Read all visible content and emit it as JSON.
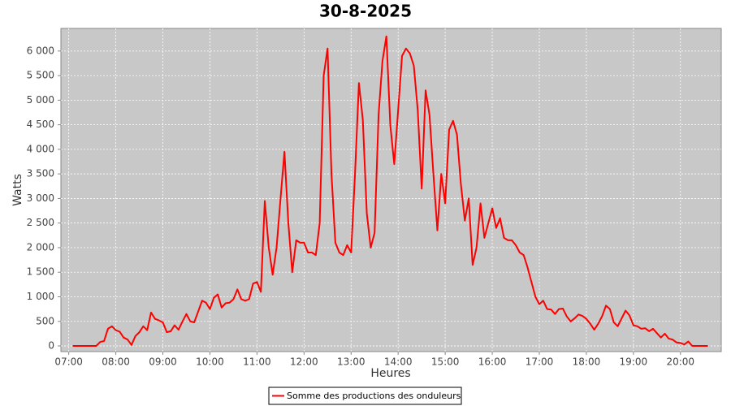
{
  "chart_data": {
    "type": "line",
    "title": "30-8-2025",
    "x_label": "Heures",
    "y_label": "Watts",
    "x": [
      "07:05",
      "07:10",
      "07:15",
      "07:20",
      "07:25",
      "07:30",
      "07:35",
      "07:40",
      "07:45",
      "07:50",
      "07:55",
      "08:00",
      "08:05",
      "08:10",
      "08:15",
      "08:20",
      "08:25",
      "08:30",
      "08:35",
      "08:40",
      "08:45",
      "08:50",
      "08:55",
      "09:00",
      "09:05",
      "09:10",
      "09:15",
      "09:20",
      "09:25",
      "09:30",
      "09:35",
      "09:40",
      "09:45",
      "09:50",
      "09:55",
      "10:00",
      "10:05",
      "10:10",
      "10:15",
      "10:20",
      "10:25",
      "10:30",
      "10:35",
      "10:40",
      "10:45",
      "10:50",
      "10:55",
      "11:00",
      "11:05",
      "11:10",
      "11:15",
      "11:20",
      "11:25",
      "11:30",
      "11:35",
      "11:40",
      "11:45",
      "11:50",
      "11:55",
      "12:00",
      "12:05",
      "12:10",
      "12:15",
      "12:20",
      "12:25",
      "12:30",
      "12:35",
      "12:40",
      "12:45",
      "12:50",
      "12:55",
      "13:00",
      "13:05",
      "13:10",
      "13:15",
      "13:20",
      "13:25",
      "13:30",
      "13:35",
      "13:40",
      "13:45",
      "13:50",
      "13:55",
      "14:00",
      "14:05",
      "14:10",
      "14:15",
      "14:20",
      "14:25",
      "14:30",
      "14:35",
      "14:40",
      "14:45",
      "14:50",
      "14:55",
      "15:00",
      "15:05",
      "15:10",
      "15:15",
      "15:20",
      "15:25",
      "15:30",
      "15:35",
      "15:40",
      "15:45",
      "15:50",
      "15:55",
      "16:00",
      "16:05",
      "16:10",
      "16:15",
      "16:20",
      "16:25",
      "16:30",
      "16:35",
      "16:40",
      "16:45",
      "16:50",
      "16:55",
      "17:00",
      "17:05",
      "17:10",
      "17:15",
      "17:20",
      "17:25",
      "17:30",
      "17:35",
      "17:40",
      "17:45",
      "17:50",
      "17:55",
      "18:00",
      "18:05",
      "18:10",
      "18:15",
      "18:20",
      "18:25",
      "18:30",
      "18:35",
      "18:40",
      "18:45",
      "18:50",
      "18:55",
      "19:00",
      "19:05",
      "19:10",
      "19:15",
      "19:20",
      "19:25",
      "19:30",
      "19:35",
      "19:40",
      "19:45",
      "19:50",
      "19:55",
      "20:00",
      "20:05",
      "20:10",
      "20:15",
      "20:20",
      "20:25",
      "20:30",
      "20:35"
    ],
    "series": [
      {
        "name": "Somme des productions des onduleurs",
        "color": "#ff0000",
        "values": [
          0,
          0,
          0,
          0,
          0,
          0,
          0,
          80,
          100,
          350,
          400,
          320,
          290,
          170,
          130,
          20,
          200,
          280,
          400,
          320,
          680,
          550,
          520,
          480,
          280,
          300,
          420,
          330,
          500,
          650,
          500,
          480,
          700,
          920,
          880,
          750,
          980,
          1050,
          780,
          870,
          880,
          950,
          1150,
          950,
          920,
          950,
          1270,
          1300,
          1100,
          2950,
          2000,
          1450,
          2000,
          3000,
          3950,
          2500,
          1500,
          2150,
          2100,
          2100,
          1900,
          1900,
          1850,
          2500,
          5500,
          6050,
          3500,
          2100,
          1900,
          1850,
          2050,
          1900,
          3500,
          5350,
          4600,
          2700,
          2000,
          2300,
          4700,
          5800,
          6300,
          4500,
          3700,
          4800,
          5900,
          6050,
          5950,
          5700,
          4800,
          3200,
          5200,
          4700,
          3500,
          2350,
          3500,
          2900,
          4400,
          4580,
          4300,
          3300,
          2550,
          3000,
          1650,
          2000,
          2900,
          2200,
          2500,
          2800,
          2400,
          2600,
          2200,
          2150,
          2150,
          2050,
          1900,
          1850,
          1600,
          1300,
          1000,
          850,
          920,
          750,
          740,
          650,
          750,
          760,
          600,
          500,
          560,
          640,
          610,
          550,
          450,
          330,
          450,
          600,
          820,
          750,
          480,
          400,
          560,
          720,
          620,
          420,
          400,
          350,
          360,
          300,
          350,
          260,
          170,
          250,
          150,
          130,
          70,
          60,
          30,
          90,
          0,
          0,
          0,
          0,
          0
        ]
      }
    ],
    "xlim": [
      "06:50",
      "20:52"
    ],
    "xticks": [
      "07:00",
      "08:00",
      "09:00",
      "10:00",
      "11:00",
      "12:00",
      "13:00",
      "14:00",
      "15:00",
      "16:00",
      "17:00",
      "18:00",
      "19:00",
      "20:00"
    ],
    "ylim": [
      -115,
      6460
    ],
    "yticks": [
      0,
      500,
      {
        "value": 1000,
        "label": "1 000"
      },
      {
        "value": 1500,
        "label": "1 500"
      },
      {
        "value": 2000,
        "label": "2 000"
      },
      {
        "value": 2500,
        "label": "2 500"
      },
      {
        "value": 3000,
        "label": "3 000"
      },
      {
        "value": 3500,
        "label": "3 500"
      },
      {
        "value": 4000,
        "label": "4 000"
      },
      {
        "value": 4500,
        "label": "4 500"
      },
      {
        "value": 5000,
        "label": "5 000"
      },
      {
        "value": 5500,
        "label": "5 500"
      },
      {
        "value": 6000,
        "label": "6 000"
      }
    ],
    "grid": true,
    "legend": "bottom"
  }
}
